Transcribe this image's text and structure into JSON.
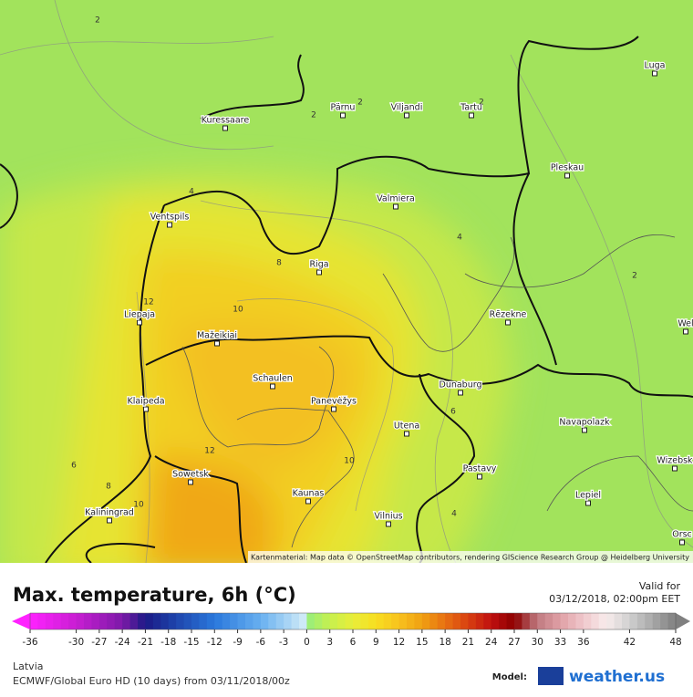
{
  "header": {
    "title": "Max. temperature, 6h (°C)",
    "valid_label": "Valid for",
    "valid_time": "03/12/2018, 02:00pm EET"
  },
  "map": {
    "cities": [
      "Kuressaare",
      "Pärnu",
      "Viljandi",
      "Tartu",
      "Luga",
      "Pleskau",
      "Valmiera",
      "Ventspils",
      "Riga",
      "Liepaja",
      "Rēzekne",
      "Mažeikiai",
      "Schaulen",
      "Klaipeda",
      "Panevėžys",
      "Dunaburg",
      "Utena",
      "Navapolazk",
      "Sowetsk",
      "Pastavy",
      "Wizebsk",
      "Kaunas",
      "Lepiel",
      "Kaliningrad",
      "Vilnius",
      "Orsc",
      "Wel"
    ],
    "contour_labels": [
      "2",
      "2",
      "2",
      "2",
      "2",
      "4",
      "4",
      "4",
      "6",
      "6",
      "8",
      "8",
      "10",
      "10",
      "10",
      "12",
      "12"
    ],
    "attribution": "Kartenmaterial: Map data © OpenStreetMap contributors, rendering GIScience Research Group @ Heidelberg University"
  },
  "legend": {
    "ticks": [
      -36,
      -30,
      -27,
      -24,
      -21,
      -18,
      -15,
      -12,
      -9,
      -6,
      -3,
      0,
      3,
      6,
      9,
      12,
      15,
      18,
      21,
      24,
      27,
      30,
      33,
      36,
      42,
      48
    ]
  },
  "footer": {
    "region": "Latvia",
    "model_run": "ECMWF/Global Euro HD (10 days) from 03/11/2018/00z",
    "model_label": "Model:",
    "brand": "weather.us"
  }
}
